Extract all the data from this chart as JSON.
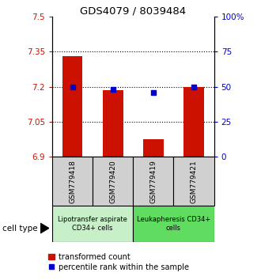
{
  "title": "GDS4079 / 8039484",
  "samples": [
    "GSM779418",
    "GSM779420",
    "GSM779419",
    "GSM779421"
  ],
  "bar_values": [
    7.33,
    7.185,
    6.975,
    7.2
  ],
  "percentile_values": [
    50,
    48,
    46,
    50
  ],
  "bar_color": "#cc1100",
  "dot_color": "#0000cc",
  "ylim_left": [
    6.9,
    7.5
  ],
  "ylim_right": [
    0,
    100
  ],
  "yticks_left": [
    6.9,
    7.05,
    7.2,
    7.35,
    7.5
  ],
  "ytick_labels_left": [
    "6.9",
    "7.05",
    "7.2",
    "7.35",
    "7.5"
  ],
  "yticks_right": [
    0,
    25,
    50,
    75,
    100
  ],
  "ytick_labels_right": [
    "0",
    "25",
    "50",
    "75",
    "100%"
  ],
  "hlines": [
    7.05,
    7.2,
    7.35
  ],
  "group1_label": "Lipotransfer aspirate\nCD34+ cells",
  "group2_label": "Leukapheresis CD34+\ncells",
  "group1_indices": [
    0,
    1
  ],
  "group2_indices": [
    2,
    3
  ],
  "cell_type_label": "cell type",
  "legend1": "transformed count",
  "legend2": "percentile rank within the sample",
  "group1_color": "#c8f0c8",
  "group2_color": "#60dd60",
  "sample_box_color": "#d0d0d0",
  "bar_width": 0.5
}
